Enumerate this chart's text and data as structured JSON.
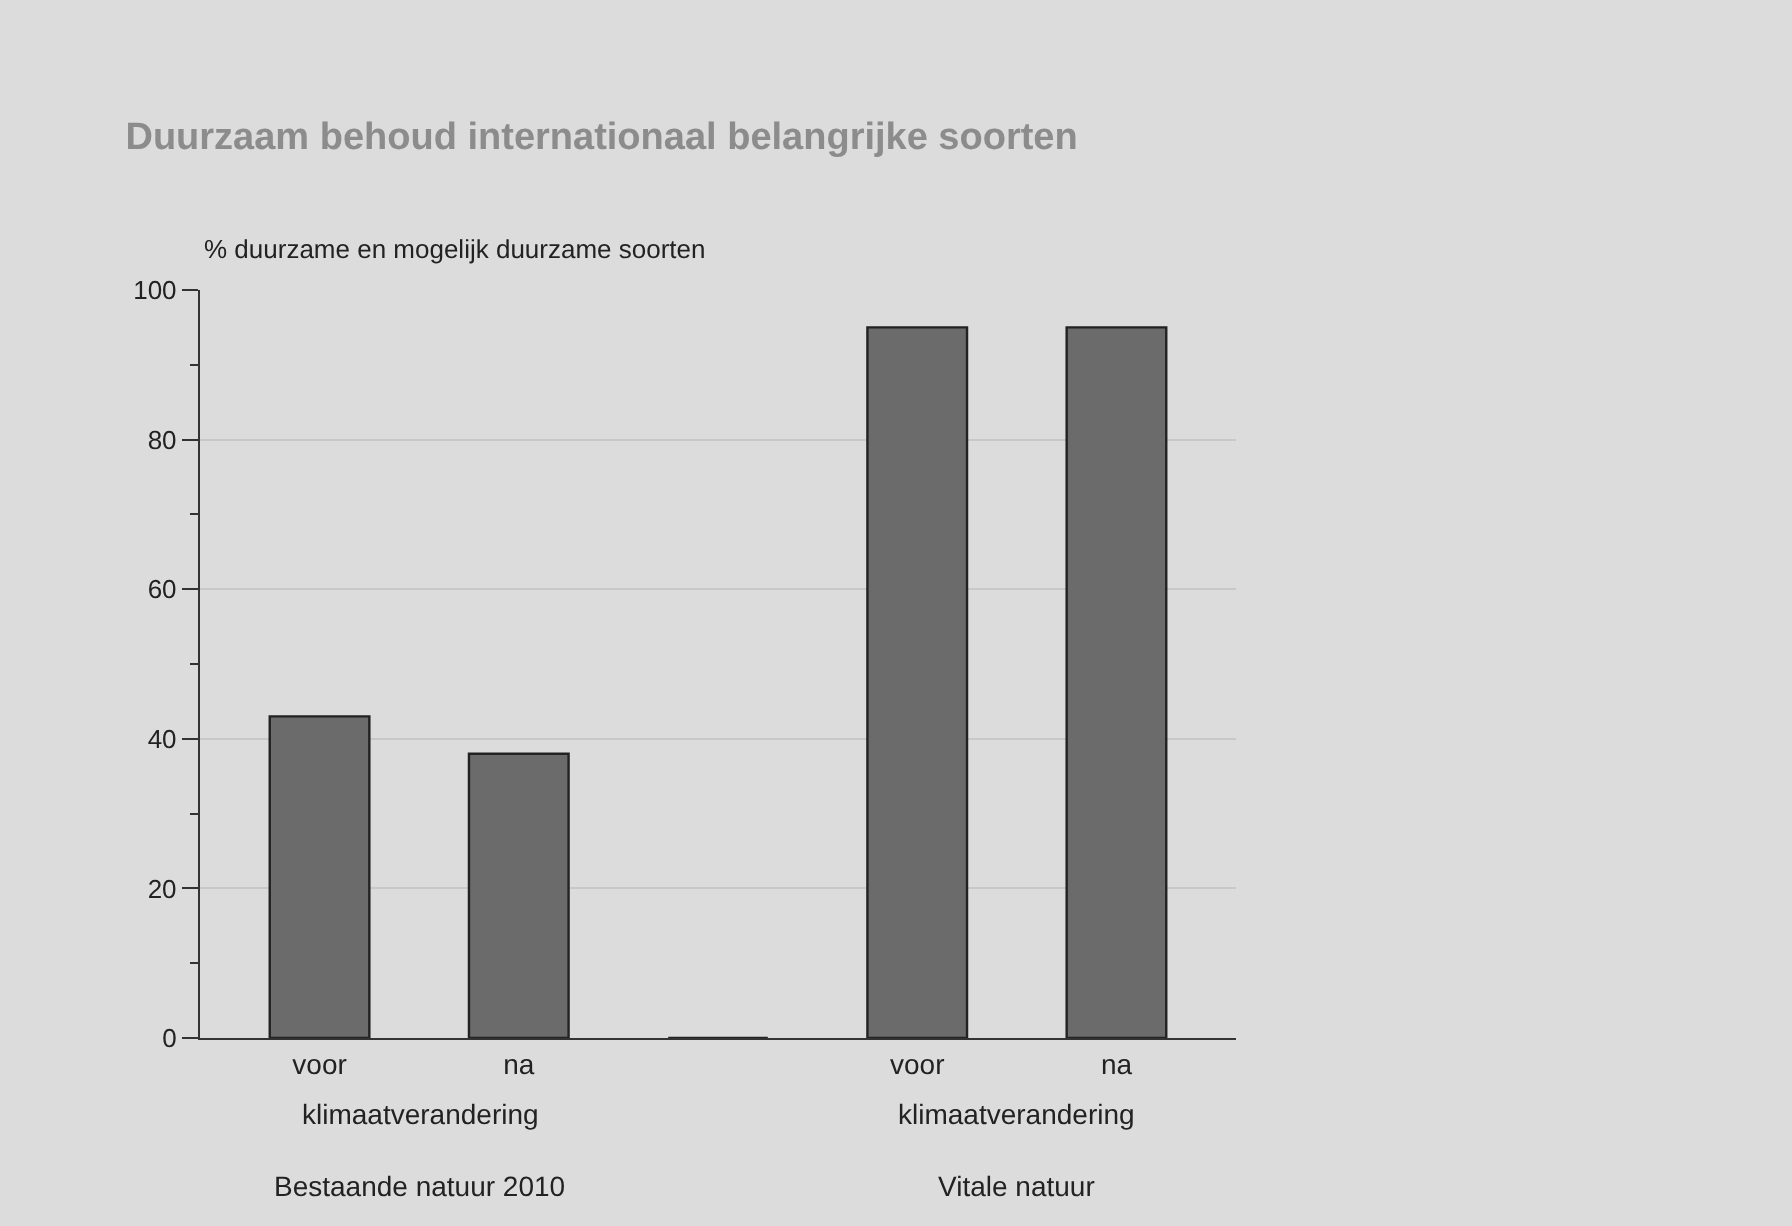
{
  "chart_data": {
    "type": "bar",
    "title": "Duurzaam behoud internationaal belangrijke soorten",
    "ylabel": "% duurzame en mogelijk duurzame soorten",
    "categories": [
      "voor",
      "na",
      null,
      "voor",
      "na"
    ],
    "values": [
      43,
      38,
      0,
      95,
      95
    ],
    "colors": [
      "#6b6b6b",
      "#6b6b6b",
      "#222222",
      "#6b6b6b",
      "#6b6b6b"
    ],
    "ylim": [
      0,
      100
    ],
    "yticks": [
      0,
      {
        "value": 10,
        "label": null
      },
      20,
      {
        "value": 30,
        "label": null
      },
      40,
      {
        "value": 50,
        "label": null
      },
      60,
      {
        "value": 70,
        "label": null
      },
      80,
      {
        "value": 90,
        "label": null
      },
      100
    ],
    "grid": "y",
    "annotations": [
      "klimaatverandering",
      "Bestaande natuur 2010",
      "klimaatverandering",
      "Vitale natuur"
    ]
  }
}
